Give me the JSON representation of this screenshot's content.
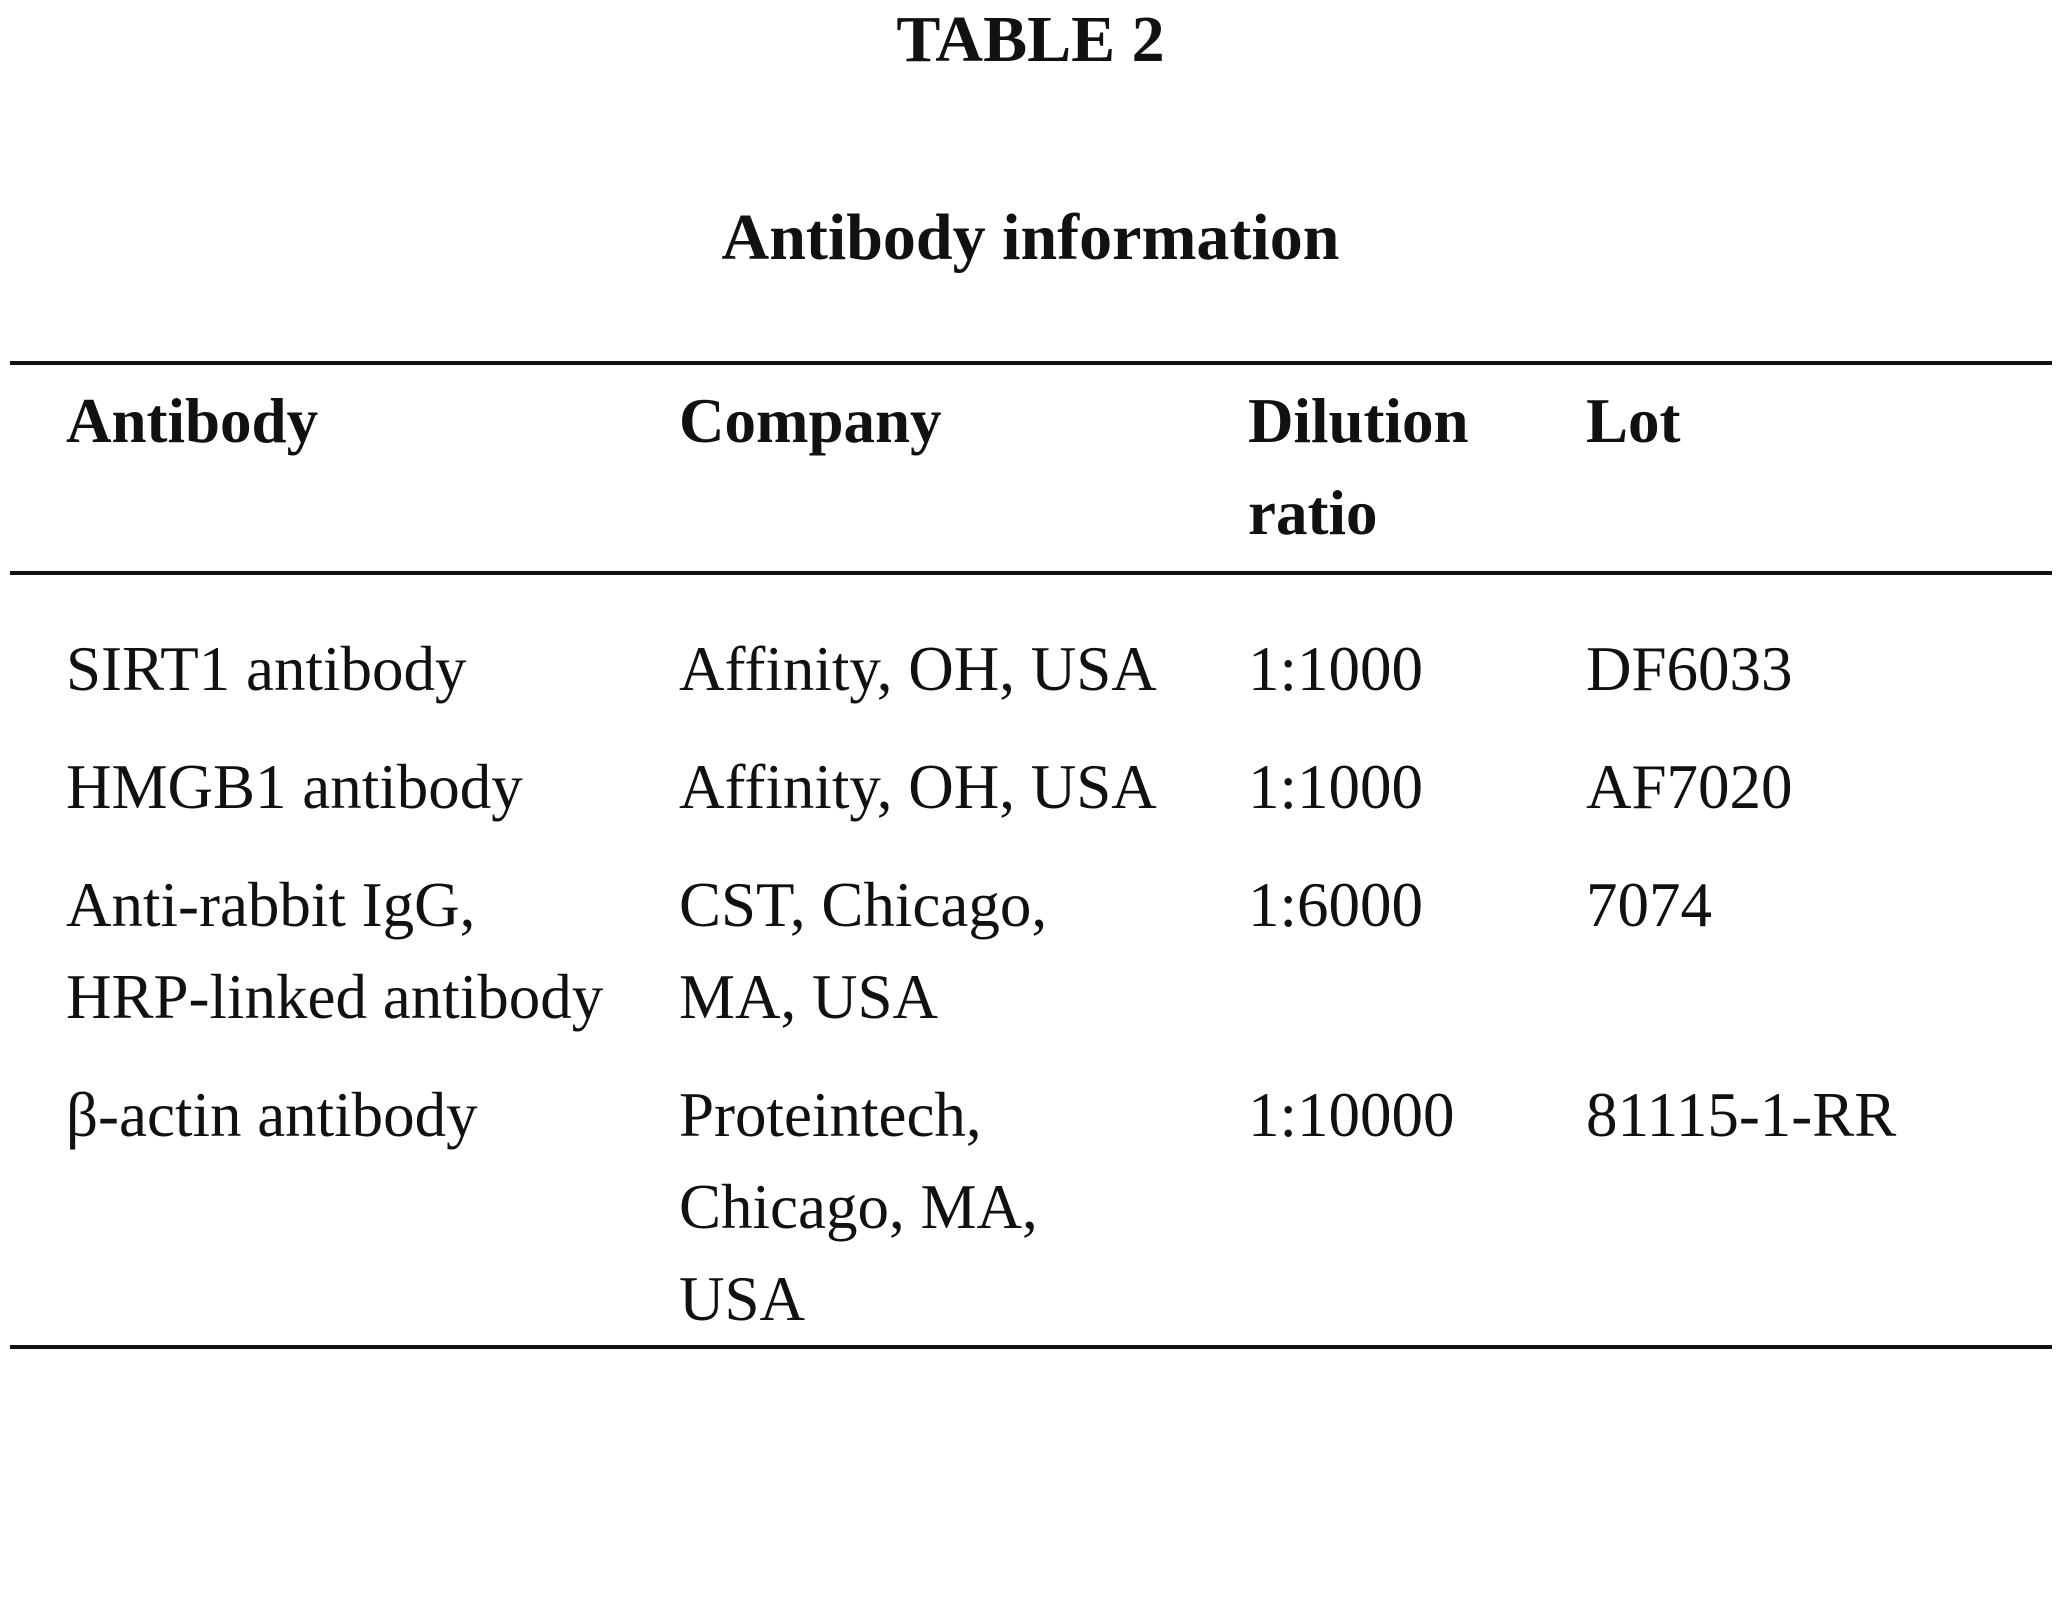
{
  "header": {
    "title": "TABLE 2",
    "subtitle": "Antibody information"
  },
  "table": {
    "columns": [
      "Antibody",
      "Company",
      "Dilution ratio",
      "Lot"
    ],
    "rows": [
      [
        "SIRT1 antibody",
        "Affinity, OH, USA",
        "1:1000",
        "DF6033"
      ],
      [
        "HMGB1 antibody",
        "Affinity, OH, USA",
        "1:1000",
        "AF7020"
      ],
      [
        "Anti-rabbit IgG, HRP-linked antibody",
        "CST, Chicago, MA, USA",
        "1:6000",
        "7074"
      ],
      [
        "β-actin antibody",
        "Proteintech, Chicago, MA, USA",
        "1:10000",
        "81115-1-RR"
      ]
    ]
  }
}
